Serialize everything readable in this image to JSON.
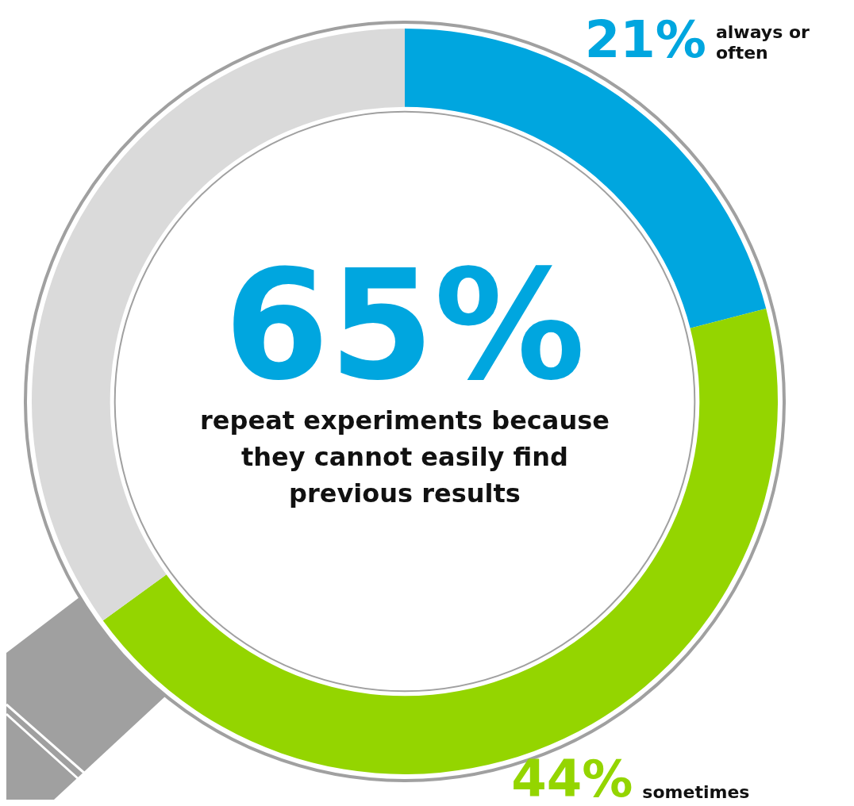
{
  "chart_data": {
    "type": "donut",
    "title": "65%",
    "subtitle": "repeat experiments because they cannot easily find previous results",
    "categories": [
      "always or often",
      "sometimes",
      null
    ],
    "values": [
      21,
      44,
      35
    ],
    "colors": [
      "#00a6df",
      "#94d500",
      "#dadada"
    ],
    "value_labels": [
      "21%",
      "44%",
      null
    ],
    "legend": false
  }
}
